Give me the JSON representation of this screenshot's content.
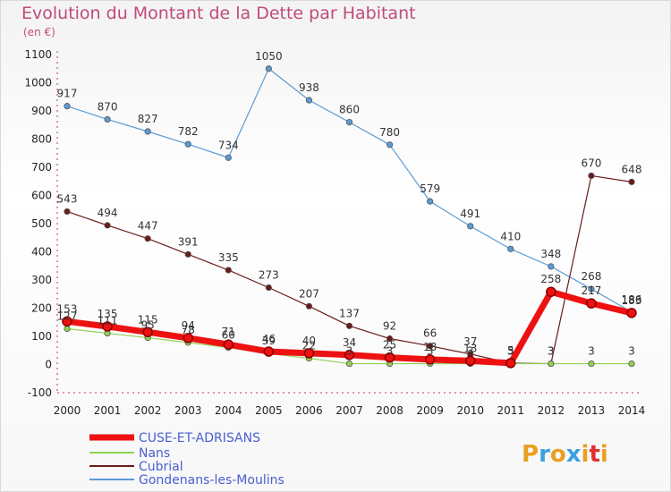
{
  "title": "Evolution du Montant de la Dette par Habitant",
  "unit": "(en €)",
  "logo": "Proxiti",
  "chart_data": {
    "type": "line",
    "title": "Evolution du Montant de la Dette par Habitant",
    "ylabel": "(en €)",
    "x": [
      2000,
      2001,
      2002,
      2003,
      2004,
      2005,
      2006,
      2007,
      2008,
      2009,
      2010,
      2011,
      2012,
      2013,
      2014
    ],
    "ylim": [
      -100,
      1100
    ],
    "yticks": [
      -100,
      0,
      100,
      200,
      300,
      400,
      500,
      600,
      700,
      800,
      900,
      1000,
      1100
    ],
    "grid": false,
    "legend": "bottom-left",
    "series": [
      {
        "name": "Gondenans-les-Moulins",
        "color": "#5b9bd5",
        "width": 1.2,
        "values": [
          917,
          870,
          827,
          782,
          734,
          1050,
          938,
          860,
          780,
          579,
          491,
          410,
          348,
          268,
          186
        ]
      },
      {
        "name": "Cubrial",
        "color": "#6a1a1a",
        "width": 1.2,
        "values": [
          543,
          494,
          447,
          391,
          335,
          273,
          207,
          137,
          92,
          66,
          37,
          5,
          3,
          670,
          648
        ]
      },
      {
        "name": "Nans",
        "color": "#8fd14f",
        "width": 1.2,
        "values": [
          127,
          111,
          95,
          78,
          60,
          39,
          22,
          3,
          3,
          3,
          3,
          3,
          3,
          3,
          3
        ]
      },
      {
        "name": "CUSE-ET-ADRISANS",
        "color": "#ee1111",
        "width": 7,
        "values": [
          153,
          135,
          115,
          94,
          71,
          46,
          40,
          34,
          25,
          18,
          13,
          5,
          258,
          217,
          183
        ]
      }
    ]
  }
}
